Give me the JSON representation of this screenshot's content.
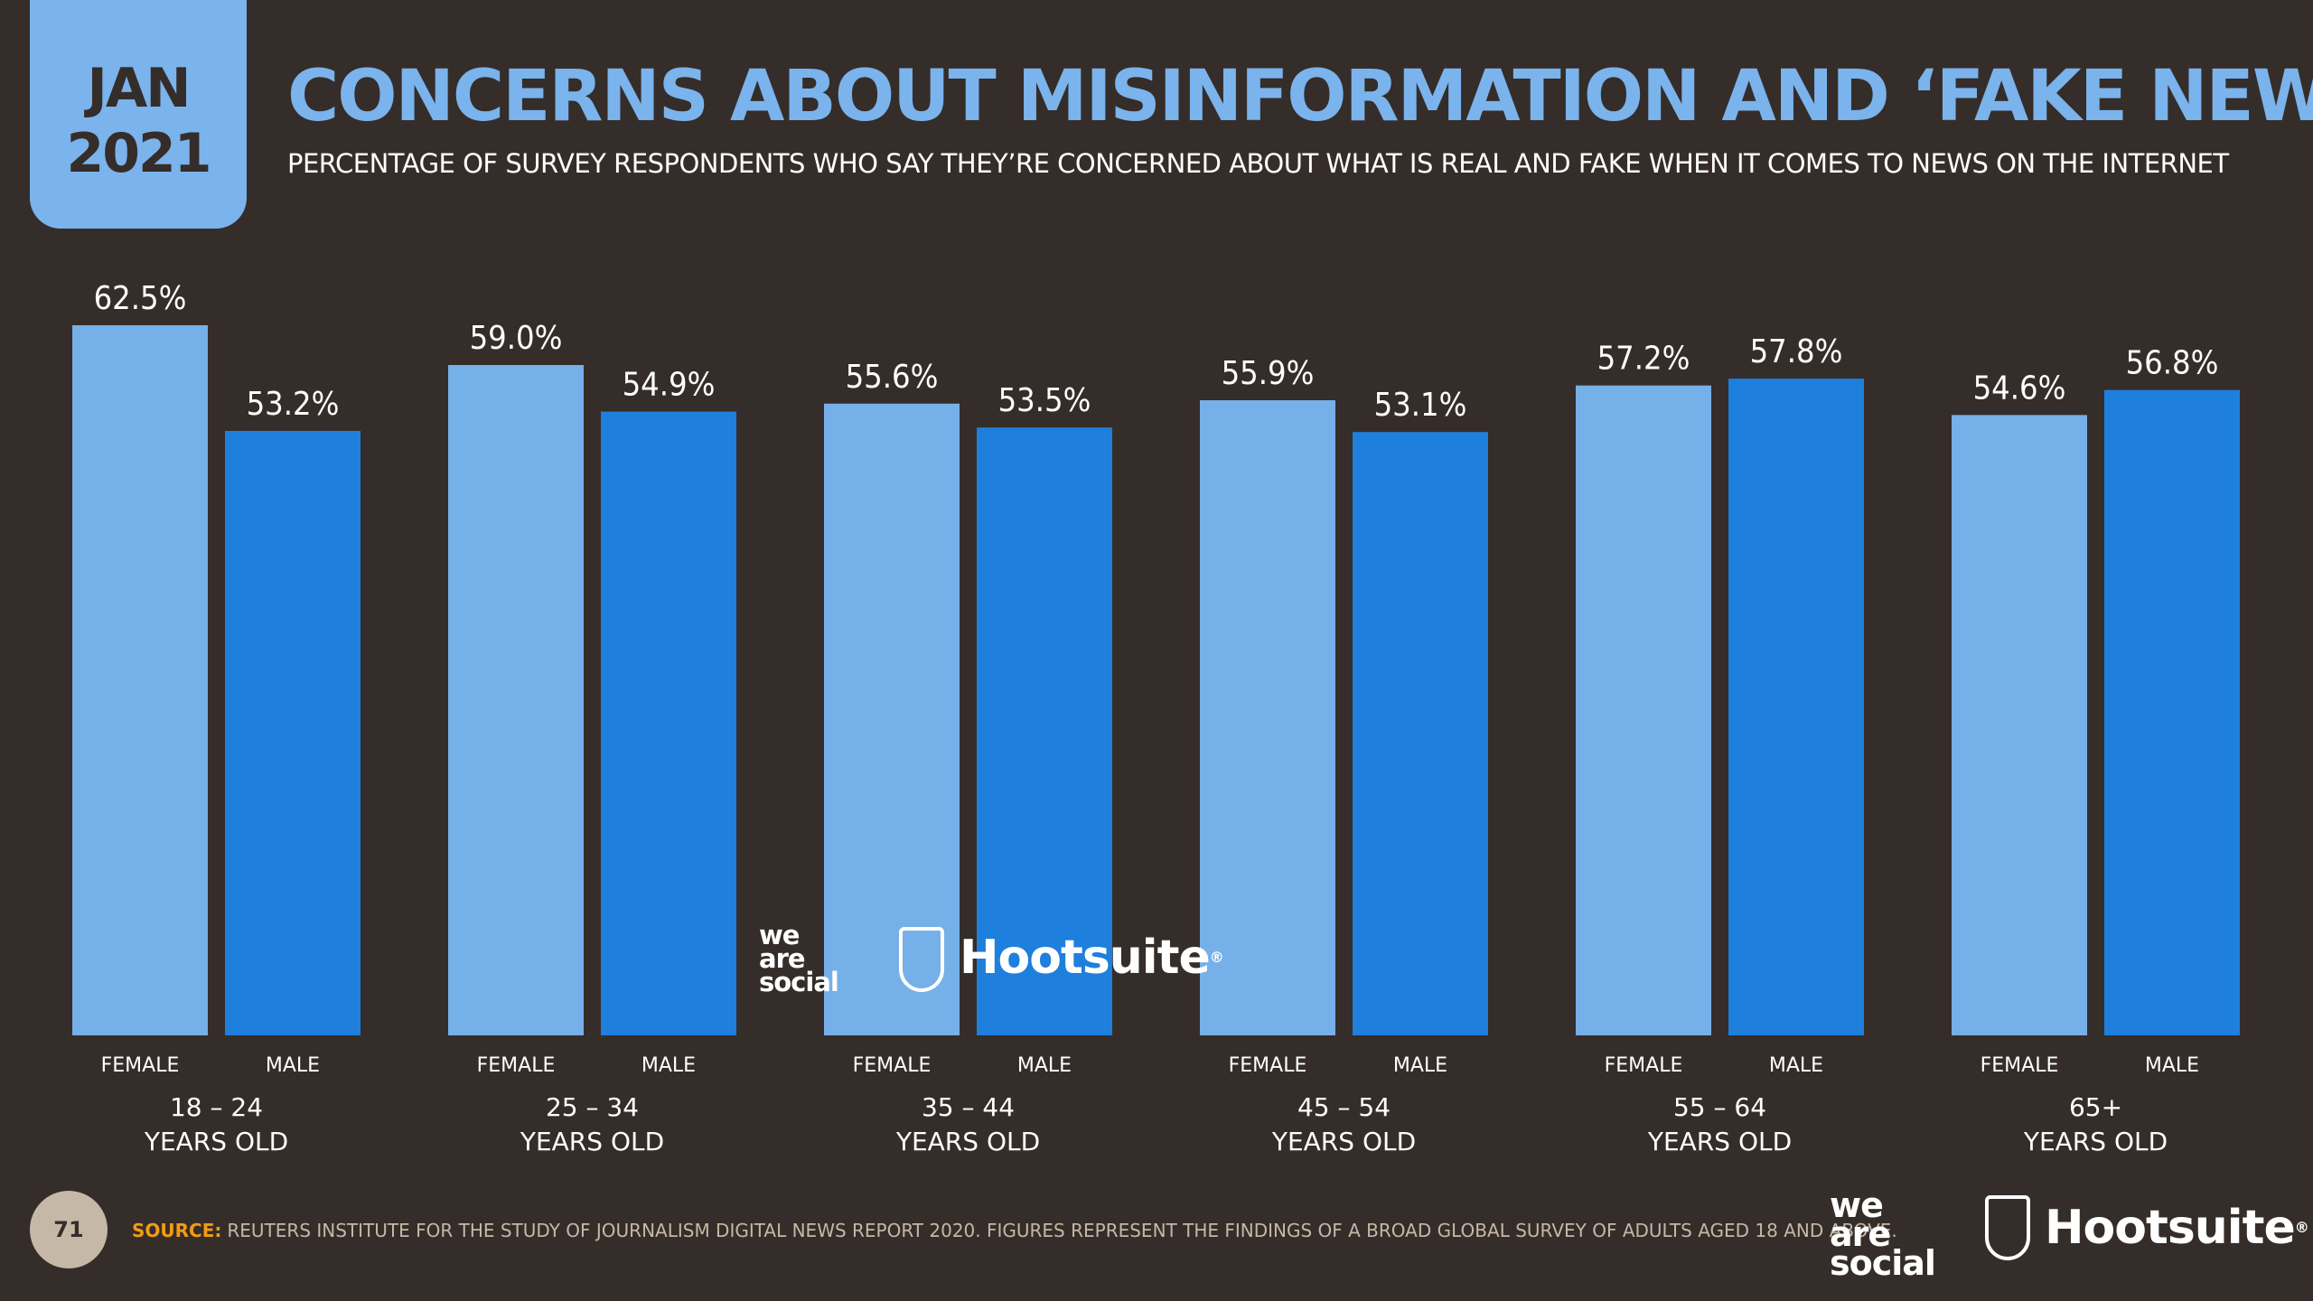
{
  "badge": {
    "month": "JAN",
    "year": "2021"
  },
  "header": {
    "title": "CONCERNS ABOUT MISINFORMATION AND ‘FAKE NEWS’",
    "subtitle": "PERCENTAGE OF SURVEY RESPONDENTS WHO SAY THEY’RE CONCERNED ABOUT WHAT IS REAL AND FAKE WHEN IT COMES TO NEWS ON THE INTERNET"
  },
  "chart_data": {
    "type": "bar",
    "title": "CONCERNS ABOUT MISINFORMATION AND ‘FAKE NEWS’",
    "unit": "%",
    "ylim": [
      0,
      62.5
    ],
    "grid": false,
    "groups": [
      {
        "line1": "18 – 24",
        "line2": "YEARS OLD",
        "bars": [
          {
            "label": "FEMALE",
            "value": 62.5,
            "display": "62.5%"
          },
          {
            "label": "MALE",
            "value": 53.2,
            "display": "53.2%"
          }
        ]
      },
      {
        "line1": "25 – 34",
        "line2": "YEARS OLD",
        "bars": [
          {
            "label": "FEMALE",
            "value": 59.0,
            "display": "59.0%"
          },
          {
            "label": "MALE",
            "value": 54.9,
            "display": "54.9%"
          }
        ]
      },
      {
        "line1": "35 – 44",
        "line2": "YEARS OLD",
        "bars": [
          {
            "label": "FEMALE",
            "value": 55.6,
            "display": "55.6%"
          },
          {
            "label": "MALE",
            "value": 53.5,
            "display": "53.5%"
          }
        ]
      },
      {
        "line1": "45 – 54",
        "line2": "YEARS OLD",
        "bars": [
          {
            "label": "FEMALE",
            "value": 55.9,
            "display": "55.9%"
          },
          {
            "label": "MALE",
            "value": 53.1,
            "display": "53.1%"
          }
        ]
      },
      {
        "line1": "55 – 64",
        "line2": "YEARS OLD",
        "bars": [
          {
            "label": "FEMALE",
            "value": 57.2,
            "display": "57.2%"
          },
          {
            "label": "MALE",
            "value": 57.8,
            "display": "57.8%"
          }
        ]
      },
      {
        "line1": "65+",
        "line2": "YEARS OLD",
        "bars": [
          {
            "label": "FEMALE",
            "value": 54.6,
            "display": "54.6%"
          },
          {
            "label": "MALE",
            "value": 56.8,
            "display": "56.8%"
          }
        ]
      }
    ],
    "colors": {
      "FEMALE": "#76b0e8",
      "MALE": "#1e7fdd"
    }
  },
  "logos": {
    "we": "we",
    "are": "are",
    "social": "social",
    "hootsuite": "Hootsuite",
    "registered": "®"
  },
  "footer": {
    "page_number": "71",
    "source_label": "SOURCE:",
    "source_text": "REUTERS INSTITUTE FOR THE STUDY OF JOURNALISM DIGITAL NEWS REPORT 2020. FIGURES REPRESENT THE FINDINGS OF A BROAD GLOBAL SURVEY OF ADULTS AGED 18 AND ABOVE."
  }
}
